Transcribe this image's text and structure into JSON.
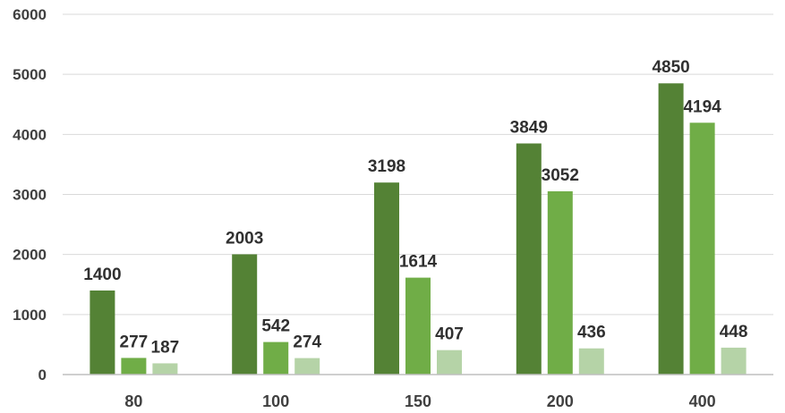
{
  "chart_data": {
    "type": "bar",
    "title": "",
    "xlabel": "",
    "ylabel": "",
    "categories": [
      "80",
      "100",
      "150",
      "200",
      "400"
    ],
    "series": [
      {
        "values": [
          1400,
          2003,
          3198,
          3849,
          4850
        ],
        "color": "#548235"
      },
      {
        "values": [
          277,
          542,
          1614,
          3052,
          4194
        ],
        "color": "#70ad47"
      },
      {
        "values": [
          187,
          274,
          407,
          436,
          448
        ],
        "color": "#b5d3a7"
      }
    ],
    "ylim": [
      0,
      6000
    ],
    "yticks": [
      "0",
      "1000",
      "2000",
      "3000",
      "4000",
      "5000",
      "6000"
    ],
    "grid": true,
    "legend": "none"
  }
}
